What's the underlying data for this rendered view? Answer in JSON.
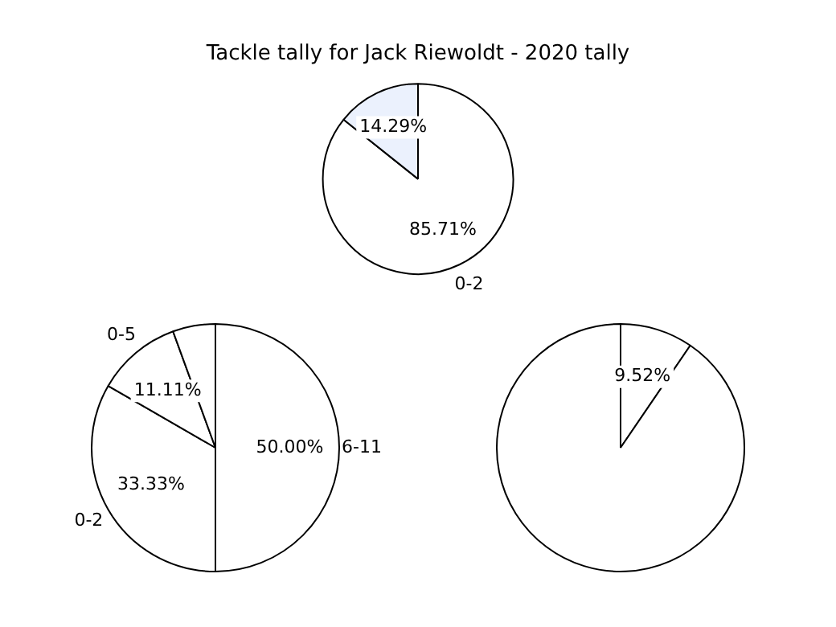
{
  "chart_data": [
    {
      "type": "pie",
      "title": "Tackle tally for Jack Riewoldt - 2020 tally",
      "categories": [
        "0-2",
        null
      ],
      "values": [
        85.71,
        14.29
      ],
      "colors": [
        "#ffffff",
        "#ebf1fd"
      ],
      "value_labels": [
        "85.71%",
        "14.29%"
      ]
    },
    {
      "type": "pie",
      "categories": [
        "6-11",
        "0-2",
        "0-5",
        null
      ],
      "values": [
        50,
        33.33,
        11.11,
        5.56
      ],
      "colors": [
        "#ffffff",
        "#ffffff",
        "#ffffff",
        "#ffffff"
      ],
      "value_labels": [
        "50.00%",
        "33.33%",
        "11.11%",
        null
      ]
    },
    {
      "type": "pie",
      "categories": [
        null,
        null
      ],
      "values": [
        9.52,
        90.48
      ],
      "colors": [
        "#ffffff",
        "#ffffff"
      ],
      "value_labels": [
        "9.52%",
        null
      ]
    }
  ]
}
